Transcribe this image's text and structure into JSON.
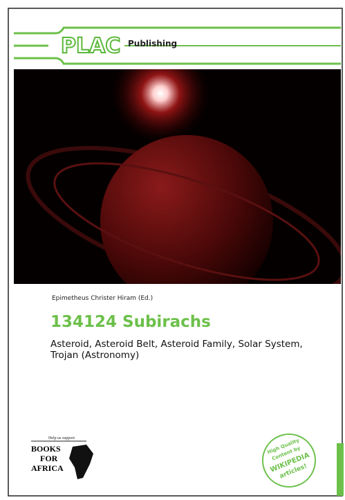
{
  "publisher": {
    "logo": "PLAC",
    "name": "Publishing"
  },
  "author": "Epimetheus Christer Hiram (Ed.)",
  "title": "134124 Subirachs",
  "subtitle": "Asteroid, Asteroid Belt, Asteroid Family, Solar System, Trojan (Astronomy)",
  "books_for_africa": {
    "tagline": "Help us support",
    "lines": [
      "BOOKS",
      "FOR",
      "AFRICA"
    ]
  },
  "badge": {
    "lines": [
      "High Quality",
      "Content by",
      "WIKIPEDIA",
      "articles!"
    ]
  }
}
